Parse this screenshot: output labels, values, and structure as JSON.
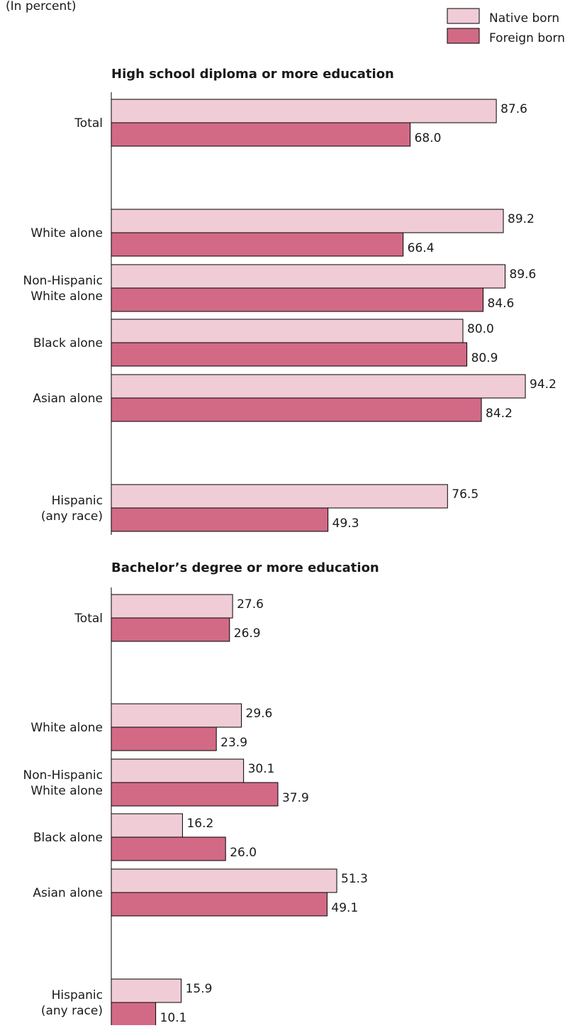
{
  "unit_note": "(In percent)",
  "legend": [
    {
      "label": "Native born",
      "color": "#f0ccd6"
    },
    {
      "label": "Foreign born",
      "color": "#d26a86"
    }
  ],
  "chart_data": [
    {
      "type": "bar",
      "orientation": "horizontal",
      "title": "High school diploma or more education",
      "categories": [
        "Total",
        "White alone",
        "Non-Hispanic\nWhite alone",
        "Black alone",
        "Asian alone",
        "Hispanic\n(any race)"
      ],
      "series": [
        {
          "name": "Native born",
          "values": [
            87.6,
            89.2,
            89.6,
            80.0,
            94.2,
            76.5
          ]
        },
        {
          "name": "Foreign born",
          "values": [
            68.0,
            66.4,
            84.6,
            80.9,
            84.2,
            49.3
          ]
        }
      ],
      "value_labels": [
        [
          "87.6",
          "89.2",
          "89.6",
          "80.0",
          "94.2",
          "76.5"
        ],
        [
          "68.0",
          "66.4",
          "84.6",
          "80.9",
          "84.2",
          "49.3"
        ]
      ],
      "xlim": [
        0,
        100
      ],
      "grid": false,
      "legend_position": "top-right"
    },
    {
      "type": "bar",
      "orientation": "horizontal",
      "title": "Bachelor’s degree or more education",
      "categories": [
        "Total",
        "White alone",
        "Non-Hispanic\nWhite alone",
        "Black alone",
        "Asian alone",
        "Hispanic\n(any race)"
      ],
      "series": [
        {
          "name": "Native born",
          "values": [
            27.6,
            29.6,
            30.1,
            16.2,
            51.3,
            15.9
          ]
        },
        {
          "name": "Foreign born",
          "values": [
            26.9,
            23.9,
            37.9,
            26.0,
            49.1,
            10.1
          ]
        }
      ],
      "value_labels": [
        [
          "27.6",
          "29.6",
          "30.1",
          "16.2",
          "51.3",
          "15.9"
        ],
        [
          "26.9",
          "23.9",
          "37.9",
          "26.0",
          "49.1",
          "10.1"
        ]
      ],
      "xlim": [
        0,
        100
      ],
      "grid": false,
      "legend_position": "top-right"
    }
  ]
}
